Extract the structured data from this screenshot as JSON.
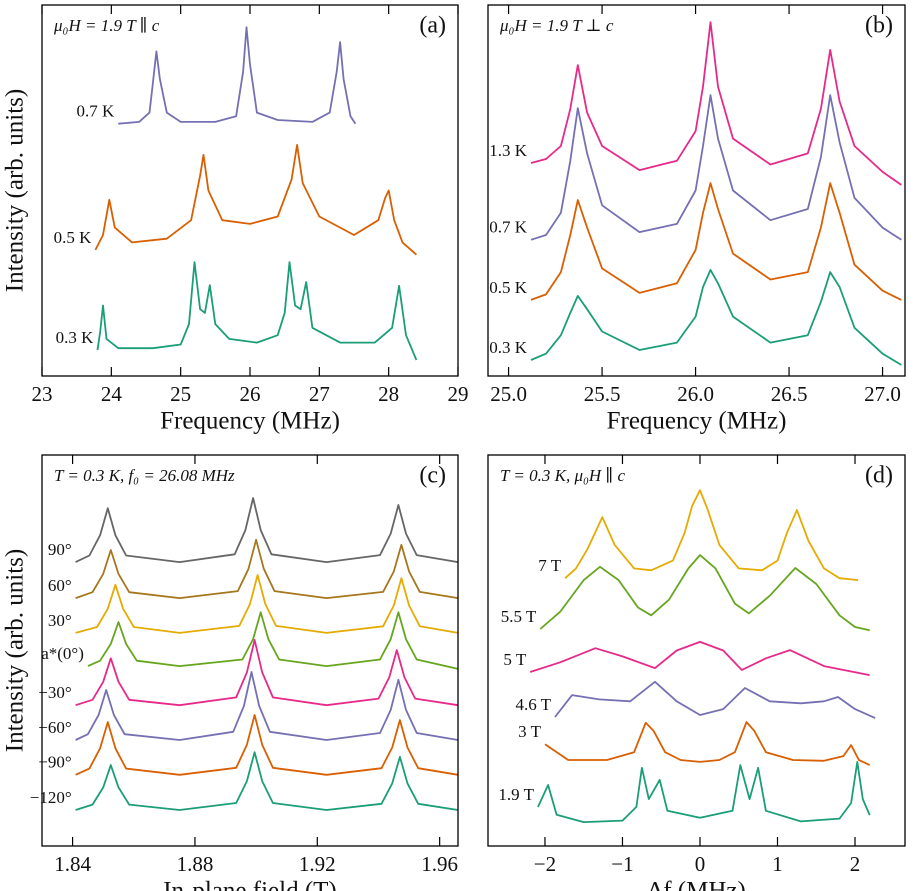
{
  "chart_data": [
    {
      "type": "line",
      "annotation": "μ₀H = 1.9 T ∥ c",
      "panel_label": "(a)",
      "xlabel": "Frequency (MHz)",
      "ylabel": "Intensity (arb. units)",
      "xlim": [
        23,
        29
      ],
      "xticks": [
        23,
        24,
        25,
        26,
        27,
        28,
        29
      ],
      "ylim": [
        0,
        100
      ],
      "series": [
        {
          "name": "0.7 K",
          "color": "#7570b3",
          "x": [
            24.1,
            24.4,
            24.55,
            24.6,
            24.65,
            24.7,
            24.8,
            25.0,
            25.5,
            25.8,
            25.9,
            25.95,
            26.0,
            26.1,
            26.4,
            26.9,
            27.15,
            27.25,
            27.3,
            27.35,
            27.45,
            27.52
          ],
          "values": [
            68,
            68.5,
            71,
            79,
            87.5,
            80,
            71,
            68.5,
            68.5,
            70,
            82,
            94,
            84,
            71,
            69,
            68.5,
            71,
            82,
            90,
            80,
            70,
            68
          ]
        },
        {
          "name": "0.5 K",
          "color": "#d95f02",
          "x": [
            23.77,
            23.88,
            23.97,
            24.05,
            24.3,
            24.8,
            25.15,
            25.28,
            25.33,
            25.4,
            25.6,
            26.0,
            26.4,
            26.6,
            26.68,
            26.76,
            27.0,
            27.5,
            27.85,
            27.95,
            28.0,
            28.08,
            28.2,
            28.4
          ],
          "values": [
            34,
            38,
            47.5,
            40,
            36,
            37,
            42,
            54,
            59.6,
            50,
            42,
            41,
            43,
            53,
            62.3,
            52,
            43,
            38,
            42,
            48,
            50,
            42,
            36,
            32.7
          ]
        },
        {
          "name": "0.3 K",
          "color": "#1b9e77",
          "x": [
            23.8,
            23.84,
            23.88,
            23.93,
            24.1,
            24.6,
            25.0,
            25.12,
            25.2,
            25.28,
            25.35,
            25.42,
            25.5,
            25.7,
            26.1,
            26.4,
            26.5,
            26.57,
            26.65,
            26.73,
            26.81,
            26.9,
            27.3,
            27.8,
            28.05,
            28.15,
            28.25,
            28.4
          ],
          "values": [
            7,
            12,
            19,
            10,
            7.5,
            7.5,
            8.5,
            14,
            30.7,
            18,
            17,
            24.5,
            14,
            10,
            9,
            11,
            17,
            30.7,
            19,
            18,
            25.3,
            13,
            9,
            9,
            13,
            24.3,
            11,
            4.3
          ]
        }
      ]
    },
    {
      "type": "line",
      "annotation": "μ₀H = 1.9 T ⊥ c",
      "panel_label": "(b)",
      "xlabel": "Frequency (MHz)",
      "xlim": [
        24.89,
        27.12
      ],
      "xticks": [
        {
          "value": 25,
          "label": "25.0"
        },
        25.5,
        {
          "value": 26,
          "label": "26.0"
        },
        26.5,
        {
          "value": 27,
          "label": "27.0"
        }
      ],
      "ylim": [
        0,
        100
      ],
      "series": [
        {
          "name": "1.3 K",
          "color": "#e7298a",
          "x": [
            25.12,
            25.2,
            25.28,
            25.33,
            25.37,
            25.42,
            25.5,
            25.7,
            25.9,
            26.0,
            26.04,
            26.08,
            26.12,
            26.2,
            26.4,
            26.6,
            26.67,
            26.72,
            26.77,
            26.85,
            27.0,
            27.1
          ],
          "values": [
            57.4,
            58.5,
            62,
            72,
            83.8,
            71,
            62,
            55.5,
            58,
            66,
            78,
            95.4,
            78,
            64,
            57,
            60,
            72,
            87.9,
            74,
            62,
            55,
            51.5
          ]
        },
        {
          "name": "0.7 K",
          "color": "#7570b3",
          "x": [
            25.12,
            25.2,
            25.28,
            25.33,
            25.37,
            25.42,
            25.5,
            25.7,
            25.9,
            26.0,
            26.04,
            26.08,
            26.12,
            26.2,
            26.4,
            26.6,
            26.67,
            26.72,
            26.77,
            26.85,
            27.0,
            27.1
          ],
          "values": [
            36.7,
            38,
            44,
            58,
            72.2,
            60,
            46,
            38.8,
            41,
            50,
            62,
            75.7,
            64,
            50,
            42,
            45,
            59,
            75.7,
            63,
            48,
            40,
            36.7
          ]
        },
        {
          "name": "0.5 K",
          "color": "#d95f02",
          "x": [
            25.12,
            25.2,
            25.28,
            25.33,
            25.37,
            25.42,
            25.5,
            25.7,
            25.9,
            26.0,
            26.04,
            26.08,
            26.12,
            26.2,
            26.4,
            26.6,
            26.67,
            26.72,
            26.77,
            26.85,
            27.0,
            27.1
          ],
          "values": [
            20.5,
            22,
            28,
            38,
            47.4,
            40,
            29,
            22.4,
            25,
            34,
            44,
            52,
            45,
            33,
            26,
            28,
            40,
            52,
            44,
            30,
            23,
            20.5
          ]
        },
        {
          "name": "0.3 K",
          "color": "#1b9e77",
          "x": [
            25.12,
            25.2,
            25.28,
            25.33,
            25.37,
            25.42,
            25.5,
            25.7,
            25.9,
            26.0,
            26.04,
            26.08,
            26.12,
            26.2,
            26.4,
            26.6,
            26.67,
            26.72,
            26.77,
            26.85,
            27.0,
            27.1
          ],
          "values": [
            4.3,
            6,
            11,
            17,
            21.6,
            18,
            12,
            7,
            9,
            16,
            24,
            28.6,
            25,
            16,
            9,
            11,
            20,
            28,
            24,
            13,
            6,
            3
          ]
        }
      ]
    },
    {
      "type": "line",
      "annotation": "T = 0.3 K,  f₀ = 26.08 MHz",
      "panel_label": "(c)",
      "xlabel": "In-plane field (T)",
      "ylabel": "Intensity (arb. units)",
      "xlim": [
        1.83,
        1.966
      ],
      "xticks": [
        1.84,
        1.88,
        1.92,
        1.96
      ],
      "ylim": [
        0,
        100
      ],
      "series": [
        {
          "name": "90°",
          "color": "#666666",
          "x": [
            1.841,
            1.8455,
            1.849,
            1.8515,
            1.854,
            1.8575,
            1.875,
            1.893,
            1.8965,
            1.899,
            1.9015,
            1.905,
            1.923,
            1.9405,
            1.944,
            1.9465,
            1.949,
            1.9525,
            1.966
          ],
          "values": [
            72.6,
            74.3,
            79.5,
            86.4,
            79.5,
            74.3,
            72.6,
            74.6,
            80.8,
            89,
            80.8,
            74.6,
            72.6,
            74.4,
            79.9,
            87.2,
            79.9,
            74.4,
            72.6
          ]
        },
        {
          "name": "60°",
          "color": "#a6761d",
          "x": [
            1.841,
            1.8465,
            1.85,
            1.8525,
            1.855,
            1.8585,
            1.875,
            1.894,
            1.8975,
            1.9,
            1.9025,
            1.906,
            1.923,
            1.9415,
            1.945,
            1.9475,
            1.95,
            1.9535,
            1.966
          ],
          "values": [
            63.4,
            64.9,
            69.6,
            75.7,
            69.6,
            64.9,
            63.4,
            65.2,
            70.9,
            78.3,
            70.9,
            65.2,
            63.4,
            65,
            70.2,
            77,
            70.2,
            65,
            63.4
          ]
        },
        {
          "name": "30°",
          "color": "#e6ab02",
          "x": [
            1.841,
            1.848,
            1.8515,
            1.854,
            1.8565,
            1.86,
            1.875,
            1.8945,
            1.898,
            1.9005,
            1.903,
            1.9065,
            1.923,
            1.9415,
            1.945,
            1.9475,
            1.95,
            1.9535,
            1.966
          ],
          "values": [
            54.5,
            56,
            60.7,
            66.8,
            60.7,
            56,
            54.5,
            56.3,
            61.9,
            69.3,
            61.9,
            56.3,
            54.5,
            56.2,
            61.5,
            68.5,
            61.5,
            56.2,
            54.5
          ]
        },
        {
          "name": "a*(0°)",
          "color": "#66a61e",
          "x": [
            1.845,
            1.849,
            1.8525,
            1.855,
            1.8575,
            1.861,
            1.875,
            1.8955,
            1.899,
            1.9015,
            1.904,
            1.9075,
            1.923,
            1.9405,
            1.944,
            1.9465,
            1.949,
            1.9525,
            1.966
          ],
          "values": [
            46,
            47.4,
            51.7,
            57.3,
            51.7,
            47.4,
            46,
            47.7,
            52.9,
            59.8,
            52.9,
            47.7,
            46,
            47.7,
            52.9,
            59.8,
            52.9,
            47.7,
            45.3
          ]
        },
        {
          "name": "−30°",
          "color": "#e7298a",
          "x": [
            1.841,
            1.8465,
            1.85,
            1.8525,
            1.855,
            1.8585,
            1.875,
            1.8935,
            1.897,
            1.8995,
            1.902,
            1.9055,
            1.923,
            1.94,
            1.9435,
            1.946,
            1.9485,
            1.952,
            1.966
          ],
          "values": [
            36,
            37.4,
            42,
            48,
            42,
            37.4,
            36,
            38,
            44.4,
            52.7,
            44.4,
            38,
            36,
            37.7,
            43.1,
            50.1,
            43.1,
            37.7,
            36
          ]
        },
        {
          "name": "−60°",
          "color": "#7570b3",
          "x": [
            1.841,
            1.845,
            1.8485,
            1.851,
            1.8535,
            1.857,
            1.875,
            1.8925,
            1.896,
            1.8985,
            1.901,
            1.9045,
            1.923,
            1.9405,
            1.944,
            1.9465,
            1.949,
            1.9525,
            1.966
          ],
          "values": [
            27.1,
            28.6,
            33.5,
            39.9,
            33.5,
            28.6,
            27.1,
            29.2,
            35.8,
            44.5,
            35.8,
            29.2,
            27.1,
            28.9,
            34.8,
            42.5,
            34.8,
            28.9,
            27.1
          ]
        },
        {
          "name": "−90°",
          "color": "#d95f02",
          "x": [
            1.841,
            1.8455,
            1.849,
            1.8515,
            1.854,
            1.8575,
            1.875,
            1.8935,
            1.897,
            1.8995,
            1.902,
            1.9055,
            1.923,
            1.941,
            1.9445,
            1.947,
            1.9495,
            1.953,
            1.966
          ],
          "values": [
            18.2,
            19.8,
            25,
            31.7,
            25,
            19.8,
            18.2,
            20,
            25.9,
            33.5,
            25.9,
            20,
            18.2,
            19.9,
            25.2,
            32.2,
            25.2,
            19.9,
            18.2
          ]
        },
        {
          "name": "−120°",
          "color": "#1b9e77",
          "x": [
            1.841,
            1.8465,
            1.85,
            1.8525,
            1.855,
            1.8585,
            1.875,
            1.8935,
            1.897,
            1.8995,
            1.902,
            1.9055,
            1.923,
            1.941,
            1.9445,
            1.947,
            1.9495,
            1.953,
            1.966
          ],
          "values": [
            9.2,
            10.6,
            15,
            20.7,
            15,
            10.6,
            9.2,
            11,
            16.6,
            24,
            16.6,
            11,
            9.2,
            10.8,
            16,
            22.8,
            16,
            10.8,
            9.2
          ]
        }
      ]
    },
    {
      "type": "line",
      "annotation": "T = 0.3 K,  μ₀H ∥ c",
      "panel_label": "(d)",
      "xlabel": "Δf (MHz)",
      "xlim": [
        -2.735,
        2.645
      ],
      "xticks": [
        {
          "value": -2,
          "label": "−2"
        },
        {
          "value": -1,
          "label": "−1"
        },
        0,
        1,
        2
      ],
      "ylim": [
        0,
        100
      ],
      "series": [
        {
          "name": "7 T",
          "color": "#e6ab02",
          "x": [
            -1.74,
            -1.6,
            -1.45,
            -1.26,
            -1.1,
            -0.85,
            -0.63,
            -0.35,
            -0.2,
            -0.1,
            0,
            0.1,
            0.25,
            0.5,
            0.8,
            1.0,
            1.12,
            1.25,
            1.4,
            1.6,
            1.8,
            2.04
          ],
          "values": [
            68.5,
            71,
            76,
            84.1,
            77,
            71,
            70.5,
            73,
            80,
            87,
            91,
            86,
            77,
            71,
            70.5,
            73,
            80,
            85.9,
            78,
            71,
            68.5,
            68
          ]
        },
        {
          "name": "5.5 T",
          "color": "#66a61e",
          "x": [
            -2.06,
            -1.8,
            -1.5,
            -1.29,
            -1.05,
            -0.8,
            -0.63,
            -0.4,
            -0.15,
            0,
            0.2,
            0.45,
            0.63,
            0.9,
            1.23,
            1.5,
            1.8,
            2.0,
            2.19
          ],
          "values": [
            55.5,
            60,
            68,
            71.4,
            68,
            61,
            59,
            63,
            71,
            74.4,
            71,
            62,
            59.5,
            64,
            71.1,
            67,
            59,
            56,
            55.2
          ]
        },
        {
          "name": "5 T",
          "color": "#e7298a",
          "x": [
            -2.19,
            -1.8,
            -1.35,
            -1.0,
            -0.58,
            -0.3,
            0,
            0.3,
            0.54,
            0.85,
            1.16,
            1.6,
            2.19
          ],
          "values": [
            44.5,
            47,
            50.6,
            48.5,
            45.5,
            50,
            52.2,
            50,
            45,
            48,
            50.1,
            46,
            43.7
          ]
        },
        {
          "name": "4.6 T",
          "color": "#7570b3",
          "x": [
            -1.87,
            -1.65,
            -1.3,
            -0.9,
            -0.58,
            -0.3,
            0,
            0.3,
            0.58,
            0.9,
            1.3,
            1.6,
            1.78,
            2.0,
            2.26
          ],
          "values": [
            33,
            38.6,
            37.5,
            37,
            42,
            37,
            33.5,
            35,
            40.4,
            37,
            36.5,
            37,
            38.1,
            35,
            32.7
          ]
        },
        {
          "name": "3 T",
          "color": "#d95f02",
          "x": [
            -2.0,
            -1.7,
            -1.2,
            -0.85,
            -0.7,
            -0.6,
            -0.45,
            -0.25,
            0,
            0.25,
            0.45,
            0.6,
            0.7,
            0.85,
            1.2,
            1.6,
            1.85,
            1.95,
            2.05,
            2.19
          ],
          "values": [
            26,
            22,
            22,
            24,
            31.5,
            29.5,
            24,
            22,
            21.5,
            22,
            24,
            31.7,
            29.5,
            24,
            22,
            21.8,
            23,
            25.8,
            22,
            20.7
          ]
        },
        {
          "name": "1.9 T",
          "color": "#1b9e77",
          "x": [
            -2.09,
            -1.96,
            -1.85,
            -1.5,
            -1.0,
            -0.82,
            -0.75,
            -0.66,
            -0.52,
            -0.42,
            0,
            0.42,
            0.52,
            0.64,
            0.75,
            0.85,
            1.3,
            1.8,
            1.95,
            2.03,
            2.1,
            2.19
          ],
          "values": [
            10,
            15.6,
            8,
            6.1,
            6.5,
            10,
            20,
            12,
            16.9,
            9,
            7.2,
            9,
            20.7,
            12,
            20,
            9,
            6.3,
            7,
            11,
            21.5,
            12,
            7.9
          ]
        }
      ]
    }
  ]
}
